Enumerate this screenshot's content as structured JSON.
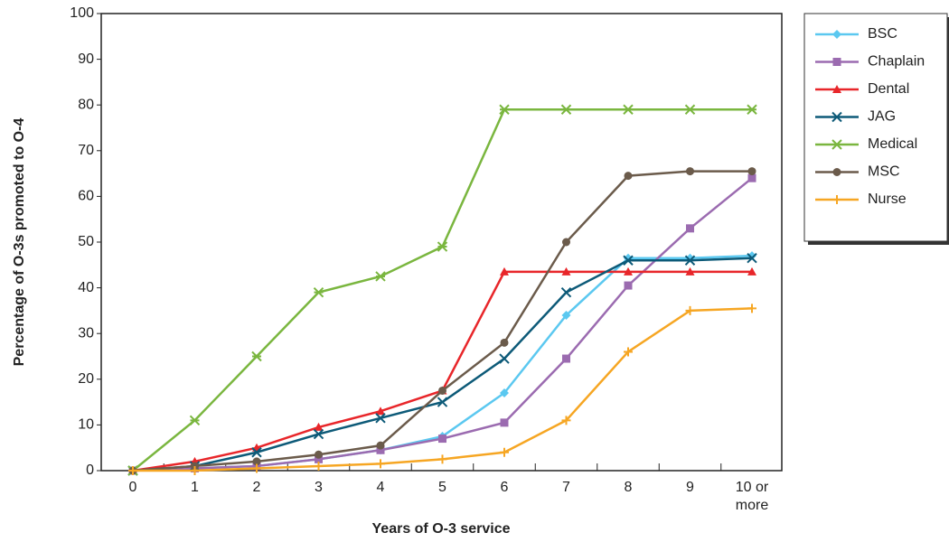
{
  "chart_data": {
    "type": "line",
    "x_label": "Years of O-3 service",
    "y_label": "Percentage of O-3s promoted to O-4",
    "categories": [
      "0",
      "1",
      "2",
      "3",
      "4",
      "5",
      "6",
      "7",
      "8",
      "9",
      "10 or more"
    ],
    "ylim": [
      0,
      100
    ],
    "yticks": [
      0,
      10,
      20,
      30,
      40,
      50,
      60,
      70,
      80,
      90,
      100
    ],
    "legend": "right",
    "series": [
      {
        "name": "BSC",
        "color": "#5bc8f0",
        "marker": "diamond",
        "values": [
          0,
          0.5,
          1,
          2.5,
          4.5,
          7.5,
          17,
          34,
          46.5,
          46.5,
          47
        ]
      },
      {
        "name": "Chaplain",
        "color": "#9b6bb0",
        "marker": "square",
        "values": [
          0,
          0.5,
          1,
          2.5,
          4.5,
          7,
          10.5,
          24.5,
          40.5,
          53,
          64
        ]
      },
      {
        "name": "Dental",
        "color": "#e8262a",
        "marker": "triangle",
        "values": [
          0,
          2,
          5,
          9.5,
          13,
          17.5,
          43.5,
          43.5,
          43.5,
          43.5,
          43.5
        ]
      },
      {
        "name": "JAG",
        "color": "#0d5a78",
        "marker": "x",
        "values": [
          0,
          1,
          4,
          8,
          11.5,
          15,
          24.5,
          39,
          46,
          46,
          46.5
        ]
      },
      {
        "name": "Medical",
        "color": "#7ab63f",
        "marker": "asterisk",
        "values": [
          0,
          11,
          25,
          39,
          42.5,
          49,
          79,
          79,
          79,
          79,
          79
        ]
      },
      {
        "name": "MSC",
        "color": "#6b5b4b",
        "marker": "circle",
        "values": [
          0,
          1,
          2,
          3.5,
          5.5,
          17.5,
          28,
          50,
          64.5,
          65.5,
          65.5
        ]
      },
      {
        "name": "Nurse",
        "color": "#f6a623",
        "marker": "plus",
        "values": [
          0,
          0,
          0.5,
          1,
          1.5,
          2.5,
          4,
          11,
          26,
          35,
          35.5
        ]
      }
    ]
  }
}
